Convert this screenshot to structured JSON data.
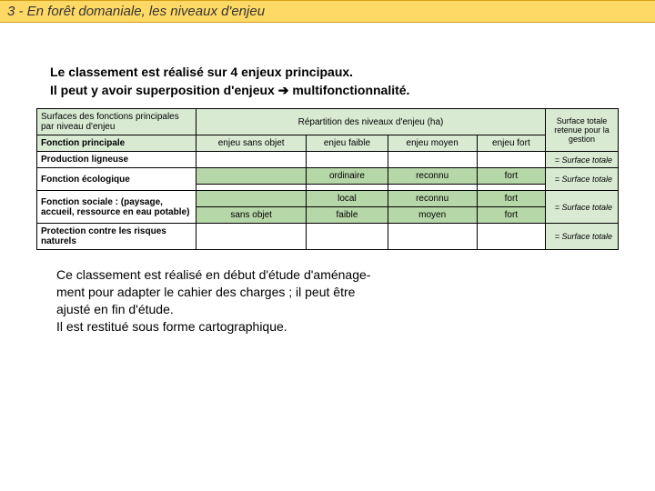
{
  "title": {
    "text": "3  -  En forêt domaniale, les niveaux d'enjeu",
    "bg_color": "#ffd966",
    "border_color": "#d4a017",
    "text_color": "#333333"
  },
  "intro": {
    "line1": "Le classement est réalisé sur 4 enjeux principaux.",
    "line2_a": "Il peut y avoir superposition d'enjeux ",
    "arrow": "➔",
    "line2_b": "  multifonctionnalité."
  },
  "table": {
    "colors": {
      "green": "#b6d7a8",
      "lightgreen": "#d9ead3",
      "border": "#000000"
    },
    "header": {
      "surfaces_label": "Surfaces des fonctions principales par niveau d'enjeu",
      "repartition_label": "Répartition des niveaux d'enjeu (ha)",
      "surface_totale_label": "Surface totale retenue pour la gestion"
    },
    "subheader": {
      "fonction_principale": "Fonction principale",
      "c1": "enjeu sans objet",
      "c2": "enjeu faible",
      "c3": "enjeu moyen",
      "c4": "enjeu fort"
    },
    "rows": [
      {
        "label": "Production ligneuse",
        "cells": [
          "",
          "",
          "",
          ""
        ],
        "total": "= Surface totale",
        "green_bg": false
      },
      {
        "label": "Fonction écologique",
        "cells": [
          "",
          "ordinaire",
          "reconnu",
          "fort"
        ],
        "total": "= Surface totale",
        "green_bg": true
      },
      {
        "label": "",
        "cells": [
          "",
          "",
          "",
          ""
        ],
        "total": "",
        "green_bg": false
      },
      {
        "label": "Fonction sociale : (paysage, accueil, ressource en eau potable)",
        "cells": [
          "",
          "local",
          "reconnu",
          "fort"
        ],
        "total": "= Surface totale",
        "green_bg": true
      },
      {
        "label": "",
        "cells": [
          "sans objet",
          "faible",
          "moyen",
          "fort"
        ],
        "total": "",
        "green_bg": true
      },
      {
        "label": "Protection contre les risques naturels",
        "cells": [
          "",
          "",
          "",
          ""
        ],
        "total": "= Surface totale",
        "green_bg": false
      }
    ]
  },
  "outro": {
    "p1": "Ce classement est réalisé en début d'étude d'aménage-\nment pour adapter le cahier des charges ; il peut être\najusté en fin d'étude.",
    "p2": "Il est restitué sous forme cartographique."
  }
}
